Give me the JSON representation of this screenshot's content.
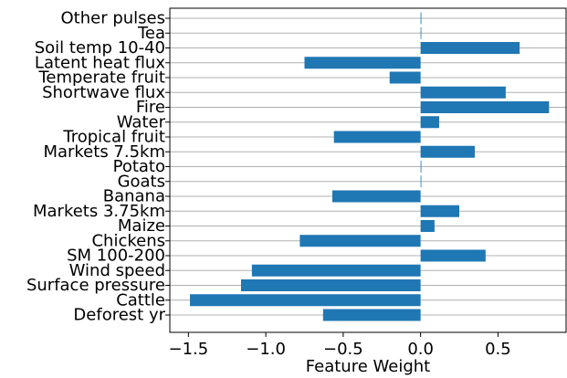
{
  "chart_data": {
    "type": "bar",
    "orientation": "horizontal",
    "categories": [
      "Deforest yr",
      "Cattle",
      "Surface pressure",
      "Wind speed",
      "SM 100-200",
      "Chickens",
      "Maize",
      "Markets 3.75km",
      "Banana",
      "Goats",
      "Potato",
      "Markets 7.5km",
      "Tropical fruit",
      "Water",
      "Fire",
      "Shortwave flux",
      "Temperate fruit",
      "Latent heat flux",
      "Soil temp 10-40",
      "Tea",
      "Other pulses"
    ],
    "values": [
      -0.63,
      -1.49,
      -1.16,
      -1.09,
      0.42,
      -0.78,
      0.09,
      0.25,
      -0.57,
      0.0,
      0.005,
      0.35,
      -0.56,
      0.12,
      0.83,
      0.55,
      -0.2,
      -0.75,
      0.64,
      0.0,
      0.005
    ],
    "title": "",
    "xlabel": "Feature Weight",
    "ylabel": "",
    "xlim": [
      -1.62,
      0.94
    ],
    "xticks": [
      -1.5,
      -1.0,
      -0.5,
      0.0,
      0.5
    ],
    "xtick_labels": [
      "−1.5",
      "−1.0",
      "−0.5",
      "0.0",
      "0.5"
    ],
    "grid": "horizontal",
    "bar_color": "#1f77b4",
    "grid_color": "#b0b0b0"
  }
}
